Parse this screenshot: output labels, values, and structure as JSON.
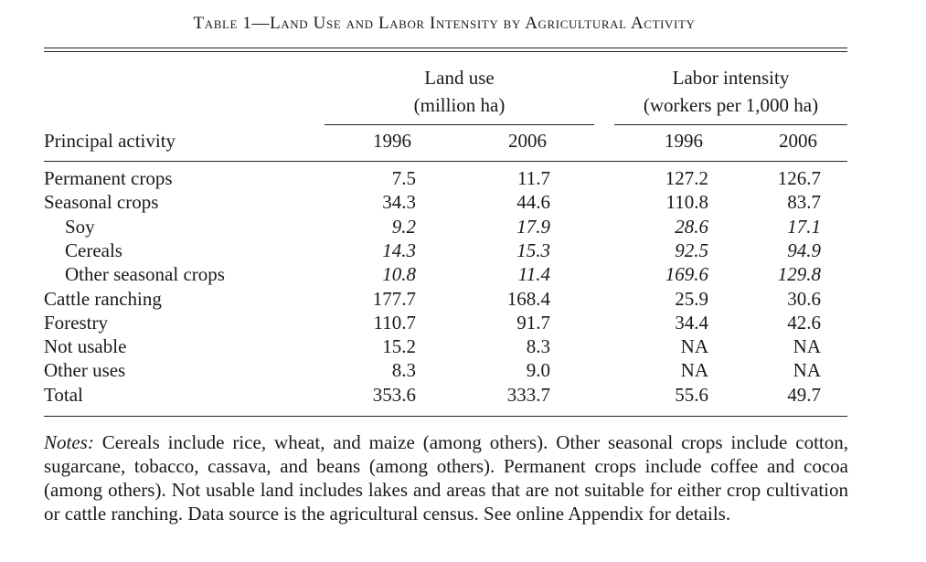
{
  "title": "Table 1—Land Use and Labor Intensity by Agricultural Activity",
  "header": {
    "group1_line1": "Land use",
    "group1_line2": "(million ha)",
    "group2_line1": "Labor intensity",
    "group2_line2": "(workers per 1,000 ha)",
    "row_label": "Principal activity",
    "years": [
      "1996",
      "2006",
      "1996",
      "2006"
    ]
  },
  "rows": [
    {
      "label": "Permanent crops",
      "indent": false,
      "italic": false,
      "values": [
        "7.5",
        "11.7",
        "127.2",
        "126.7"
      ]
    },
    {
      "label": "Seasonal crops",
      "indent": false,
      "italic": false,
      "values": [
        "34.3",
        "44.6",
        "110.8",
        "83.7"
      ]
    },
    {
      "label": "Soy",
      "indent": true,
      "italic": true,
      "values": [
        "9.2",
        "17.9",
        "28.6",
        "17.1"
      ]
    },
    {
      "label": "Cereals",
      "indent": true,
      "italic": true,
      "values": [
        "14.3",
        "15.3",
        "92.5",
        "94.9"
      ]
    },
    {
      "label": "Other seasonal crops",
      "indent": true,
      "italic": true,
      "values": [
        "10.8",
        "11.4",
        "169.6",
        "129.8"
      ]
    },
    {
      "label": "Cattle ranching",
      "indent": false,
      "italic": false,
      "values": [
        "177.7",
        "168.4",
        "25.9",
        "30.6"
      ]
    },
    {
      "label": "Forestry",
      "indent": false,
      "italic": false,
      "values": [
        "110.7",
        "91.7",
        "34.4",
        "42.6"
      ]
    },
    {
      "label": "Not usable",
      "indent": false,
      "italic": false,
      "values": [
        "15.2",
        "8.3",
        "NA",
        "NA"
      ]
    },
    {
      "label": "Other uses",
      "indent": false,
      "italic": false,
      "values": [
        "8.3",
        "9.0",
        "NA",
        "NA"
      ]
    },
    {
      "label": "Total",
      "indent": false,
      "italic": false,
      "values": [
        "353.6",
        "333.7",
        "55.6",
        "49.7"
      ]
    }
  ],
  "notes": {
    "label": "Notes:",
    "text": "Cereals include rice, wheat, and maize (among others). Other seasonal crops include cotton, sugarcane, tobacco, cassava, and beans (among others). Permanent crops include coffee and cocoa (among others). Not usable land includes lakes and areas that are not suitable for either crop cultivation or cattle ranching. Data source is the agricultural census. See online Appendix for details."
  }
}
